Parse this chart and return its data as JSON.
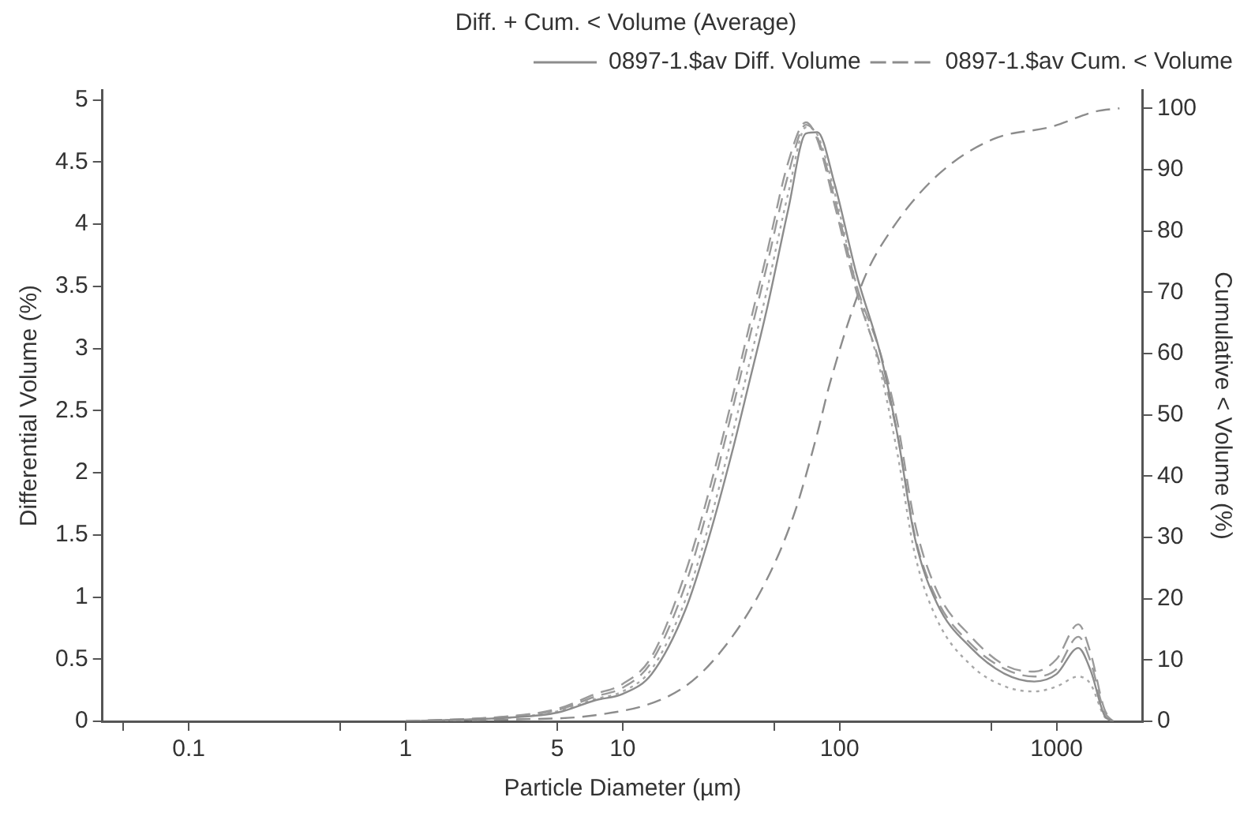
{
  "chart_data": {
    "type": "line",
    "title": "Diff. + Cum. < Volume (Average)",
    "xlabel": "Particle Diameter (µm)",
    "ylabel": "Differential Volume (%)",
    "y2label": "Cumulative < Volume (%)",
    "x": [
      1,
      3,
      5,
      7.5,
      10,
      13.6,
      19.5,
      25,
      32,
      38,
      46,
      58,
      70,
      79,
      95,
      120,
      155,
      185,
      222,
      281,
      404,
      580,
      790,
      1000,
      1260,
      1435,
      1660,
      1820
    ],
    "series": [
      {
        "name": "0897-1.$av Diff. Volume",
        "color": "#8c8c8c",
        "line_style": "solid",
        "values": [
          0,
          0.03,
          0.07,
          0.17,
          0.22,
          0.38,
          0.9,
          1.48,
          2.17,
          2.7,
          3.3,
          4.12,
          4.73,
          4.74,
          4.32,
          3.59,
          2.94,
          2.3,
          1.48,
          0.95,
          0.59,
          0.38,
          0.32,
          0.38,
          0.59,
          0.41,
          0.05,
          0
        ]
      },
      {
        "color": "#9a9a9a",
        "line_style": "dashed",
        "values": [
          0,
          0.04,
          0.09,
          0.2,
          0.27,
          0.48,
          1.1,
          1.75,
          2.5,
          3.05,
          3.65,
          4.4,
          4.8,
          4.7,
          4.2,
          3.5,
          2.95,
          2.4,
          1.6,
          1.05,
          0.68,
          0.45,
          0.4,
          0.5,
          0.78,
          0.55,
          0.1,
          0
        ]
      },
      {
        "color": "#9a9a9a",
        "line_style": "dashed",
        "values": [
          0,
          0.04,
          0.1,
          0.22,
          0.3,
          0.52,
          1.2,
          1.85,
          2.6,
          3.15,
          3.75,
          4.5,
          4.82,
          4.68,
          4.15,
          3.45,
          2.85,
          2.3,
          1.5,
          0.98,
          0.62,
          0.42,
          0.36,
          0.42,
          0.68,
          0.48,
          0.08,
          0
        ]
      },
      {
        "color": "#a8a8a8",
        "line_style": "dotted",
        "values": [
          0,
          0.03,
          0.08,
          0.18,
          0.24,
          0.42,
          0.98,
          1.58,
          2.3,
          2.85,
          3.45,
          4.25,
          4.78,
          4.72,
          4.25,
          3.5,
          2.8,
          2.15,
          1.35,
          0.82,
          0.45,
          0.28,
          0.24,
          0.28,
          0.36,
          0.3,
          0.04,
          0
        ]
      },
      {
        "name": "0897-1.$av Cum. < Volume",
        "color": "#8c8c8c",
        "line_style": "dashed",
        "axis": "y2",
        "x": [
          1,
          3,
          7.5,
          18.5,
          29,
          46,
          62,
          79,
          90,
          129,
          172,
          281,
          512,
          946,
          1520,
          1950
        ],
        "values": [
          0,
          0.3,
          1,
          5.2,
          11.8,
          23,
          34,
          47,
          55,
          72,
          80,
          89,
          95,
          97,
          99.5,
          100
        ]
      }
    ],
    "xlim": [
      0.04,
      2500
    ],
    "xticks": [
      {
        "value": 0.05,
        "label": null
      },
      0.1,
      {
        "value": 0.5,
        "label": null
      },
      1,
      5,
      10,
      {
        "value": 50,
        "label": null
      },
      100,
      {
        "value": 500,
        "label": null
      },
      1000
    ],
    "log": "x",
    "ylim": [
      0,
      5.08
    ],
    "yticks": [
      0,
      0.5,
      1,
      1.5,
      2,
      2.5,
      3,
      3.5,
      4,
      4.5,
      5
    ],
    "y2lim": [
      0,
      103
    ],
    "y2ticks": [
      0,
      10,
      20,
      30,
      40,
      50,
      60,
      70,
      80,
      90,
      100
    ],
    "grid": false,
    "legend": "top right",
    "marker": "none"
  }
}
